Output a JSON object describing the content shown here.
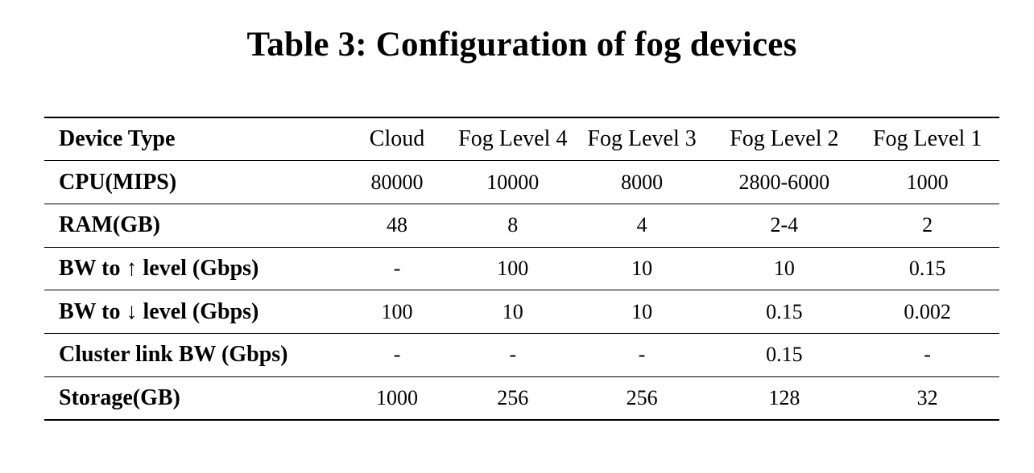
{
  "caption": "Table 3: Configuration of fog devices",
  "table": {
    "header": [
      "Device Type",
      "Cloud",
      "Fog Level 4",
      "Fog Level 3",
      "Fog Level 2",
      "Fog Level 1"
    ],
    "rows": [
      [
        "CPU(MIPS)",
        "80000",
        "10000",
        "8000",
        "2800-6000",
        "1000"
      ],
      [
        "RAM(GB)",
        "48",
        "8",
        "4",
        "2-4",
        "2"
      ],
      [
        "BW to ↑ level (Gbps)",
        "-",
        "100",
        "10",
        "10",
        "0.15"
      ],
      [
        "BW to ↓ level (Gbps)",
        "100",
        "10",
        "10",
        "0.15",
        "0.002"
      ],
      [
        "Cluster link BW (Gbps)",
        "-",
        "-",
        "-",
        "0.15",
        "-"
      ],
      [
        "Storage(GB)",
        "1000",
        "256",
        "256",
        "128",
        "32"
      ]
    ]
  }
}
